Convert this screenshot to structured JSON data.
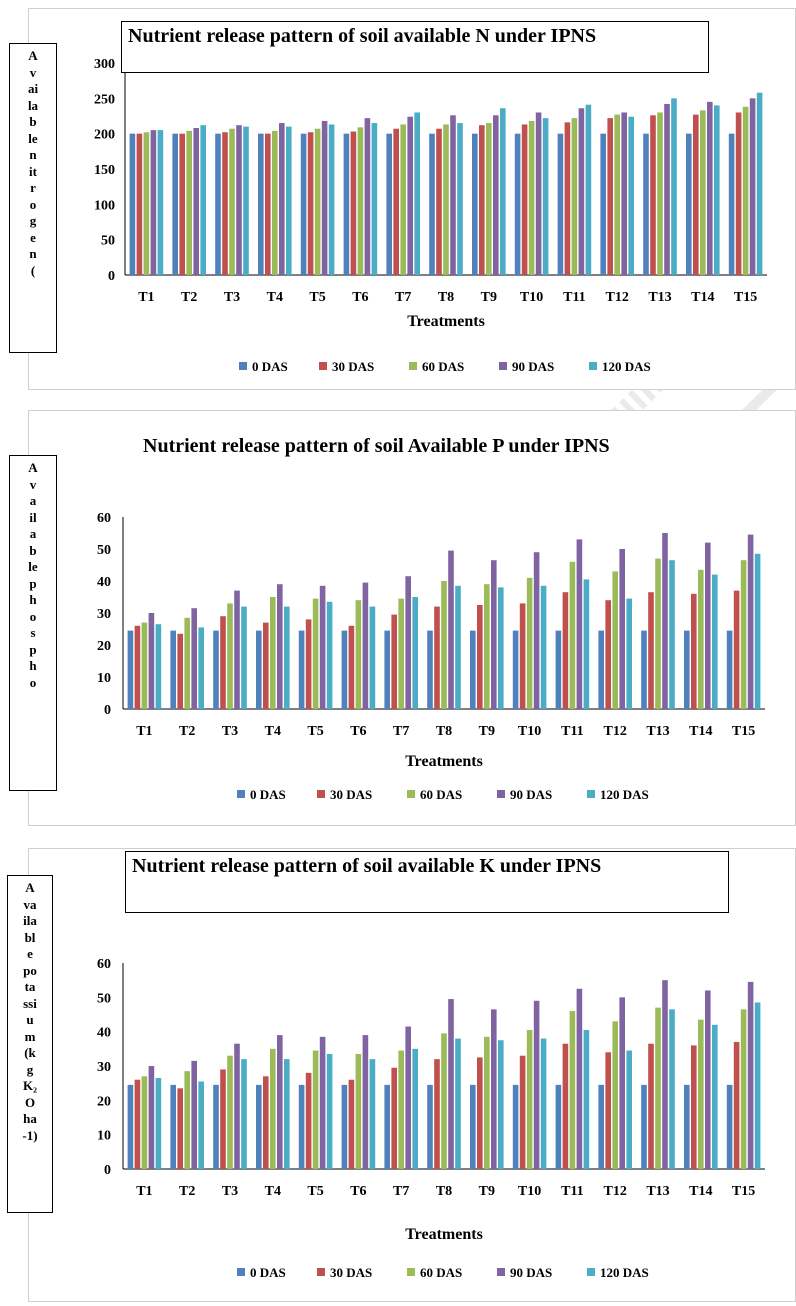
{
  "colors": {
    "s0": "#4F81BD",
    "s1": "#C0504D",
    "s2": "#9BBB59",
    "s3": "#8064A2",
    "s4": "#4BACC6",
    "axis": "#000000",
    "panel_border": "#cfcfcf"
  },
  "chart_data": [
    {
      "type": "bar",
      "title": "Nutrient release pattern of soil available N under IPNS",
      "ylabel": "Available nitrogen (",
      "xlabel": "Treatments",
      "ylim": [
        0,
        300
      ],
      "yticks": [
        "0",
        "50",
        "100",
        "150",
        "200",
        "250",
        "300"
      ],
      "ytick_values": [
        0,
        50,
        100,
        150,
        200,
        250,
        300
      ],
      "categories": [
        "T1",
        "T2",
        "T3",
        "T4",
        "T5",
        "T6",
        "T7",
        "T8",
        "T9",
        "T10",
        "T11",
        "T12",
        "T13",
        "T14",
        "T15"
      ],
      "legend_position": "bottom",
      "grid": false,
      "series": [
        {
          "name": "0 DAS",
          "color": "#4F81BD",
          "values": [
            200,
            200,
            200,
            200,
            200,
            200,
            200,
            200,
            200,
            200,
            200,
            200,
            200,
            200,
            200
          ]
        },
        {
          "name": "30 DAS",
          "color": "#C0504D",
          "values": [
            200,
            200,
            202,
            200,
            202,
            203,
            207,
            207,
            212,
            213,
            216,
            222,
            226,
            227,
            230
          ]
        },
        {
          "name": "60 DAS",
          "color": "#9BBB59",
          "values": [
            202,
            204,
            207,
            204,
            207,
            209,
            213,
            213,
            215,
            218,
            222,
            227,
            230,
            233,
            238
          ]
        },
        {
          "name": "90 DAS",
          "color": "#8064A2",
          "values": [
            205,
            208,
            212,
            215,
            218,
            222,
            224,
            226,
            226,
            230,
            236,
            230,
            242,
            245,
            250
          ]
        },
        {
          "name": "120 DAS",
          "color": "#4BACC6",
          "values": [
            205,
            212,
            210,
            210,
            213,
            215,
            230,
            215,
            236,
            222,
            241,
            224,
            250,
            240,
            258
          ]
        }
      ]
    },
    {
      "type": "bar",
      "title": "Nutrient release pattern of soil Available P under IPNS",
      "ylabel": "Available phospho",
      "xlabel": "Treatments",
      "ylim": [
        0,
        60
      ],
      "yticks": [
        "0",
        "10",
        "20",
        "30",
        "40",
        "50",
        "60"
      ],
      "ytick_values": [
        0,
        10,
        20,
        30,
        40,
        50,
        60
      ],
      "categories": [
        "T1",
        "T2",
        "T3",
        "T4",
        "T5",
        "T6",
        "T7",
        "T8",
        "T9",
        "T10",
        "T11",
        "T12",
        "T13",
        "T14",
        "T15"
      ],
      "legend_position": "bottom",
      "grid": false,
      "series": [
        {
          "name": "0 DAS",
          "color": "#4F81BD",
          "values": [
            24.5,
            24.5,
            24.5,
            24.5,
            24.5,
            24.5,
            24.5,
            24.5,
            24.5,
            24.5,
            24.5,
            24.5,
            24.5,
            24.5,
            24.5
          ]
        },
        {
          "name": "30 DAS",
          "color": "#C0504D",
          "values": [
            26,
            23.5,
            29,
            27,
            28,
            26,
            29.5,
            32,
            32.5,
            33,
            36.5,
            34,
            36.5,
            36,
            37
          ]
        },
        {
          "name": "60 DAS",
          "color": "#9BBB59",
          "values": [
            27,
            28.5,
            33,
            35,
            34.5,
            34,
            34.5,
            40,
            39,
            41,
            46,
            43,
            47,
            43.5,
            46.5
          ]
        },
        {
          "name": "90 DAS",
          "color": "#8064A2",
          "values": [
            30,
            31.5,
            37,
            39,
            38.5,
            39.5,
            41.5,
            49.5,
            46.5,
            49,
            53,
            50,
            55,
            52,
            54.5
          ]
        },
        {
          "name": "120 DAS",
          "color": "#4BACC6",
          "values": [
            26.5,
            25.5,
            32,
            32,
            33.5,
            32,
            35,
            38.5,
            38,
            38.5,
            40.5,
            34.5,
            46.5,
            42,
            48.5
          ]
        }
      ]
    },
    {
      "type": "bar",
      "title": "Nutrient release pattern of soil available K under IPNS",
      "ylabel_lines": [
        "A",
        "va",
        "ila",
        "bl",
        "e",
        "po",
        "ta",
        "ssi",
        "u",
        "m",
        "(k",
        "g",
        "K₂",
        "O",
        "ha",
        "-1)"
      ],
      "xlabel": "Treatments",
      "ylim": [
        0,
        60
      ],
      "yticks": [
        "0",
        "10",
        "20",
        "30",
        "40",
        "50",
        "60"
      ],
      "ytick_values": [
        0,
        10,
        20,
        30,
        40,
        50,
        60
      ],
      "categories": [
        "T1",
        "T2",
        "T3",
        "T4",
        "T5",
        "T6",
        "T7",
        "T8",
        "T9",
        "T10",
        "T11",
        "T12",
        "T13",
        "T14",
        "T15"
      ],
      "legend_position": "bottom",
      "grid": false,
      "series": [
        {
          "name": "0 DAS",
          "color": "#4F81BD",
          "values": [
            24.5,
            24.5,
            24.5,
            24.5,
            24.5,
            24.5,
            24.5,
            24.5,
            24.5,
            24.5,
            24.5,
            24.5,
            24.5,
            24.5,
            24.5
          ]
        },
        {
          "name": "30 DAS",
          "color": "#C0504D",
          "values": [
            26,
            23.5,
            29,
            27,
            28,
            26,
            29.5,
            32,
            32.5,
            33,
            36.5,
            34,
            36.5,
            36,
            37
          ]
        },
        {
          "name": "60 DAS",
          "color": "#9BBB59",
          "values": [
            27,
            28.5,
            33,
            35,
            34.5,
            33.5,
            34.5,
            39.5,
            38.5,
            40.5,
            46,
            43,
            47,
            43.5,
            46.5
          ]
        },
        {
          "name": "90 DAS",
          "color": "#8064A2",
          "values": [
            30,
            31.5,
            36.5,
            39,
            38.5,
            39,
            41.5,
            49.5,
            46.5,
            49,
            52.5,
            50,
            55,
            52,
            54.5
          ]
        },
        {
          "name": "120 DAS",
          "color": "#4BACC6",
          "values": [
            26.5,
            25.5,
            32,
            32,
            33.5,
            32,
            35,
            38,
            37.5,
            38,
            40.5,
            34.5,
            46.5,
            42,
            48.5
          ]
        }
      ]
    }
  ]
}
